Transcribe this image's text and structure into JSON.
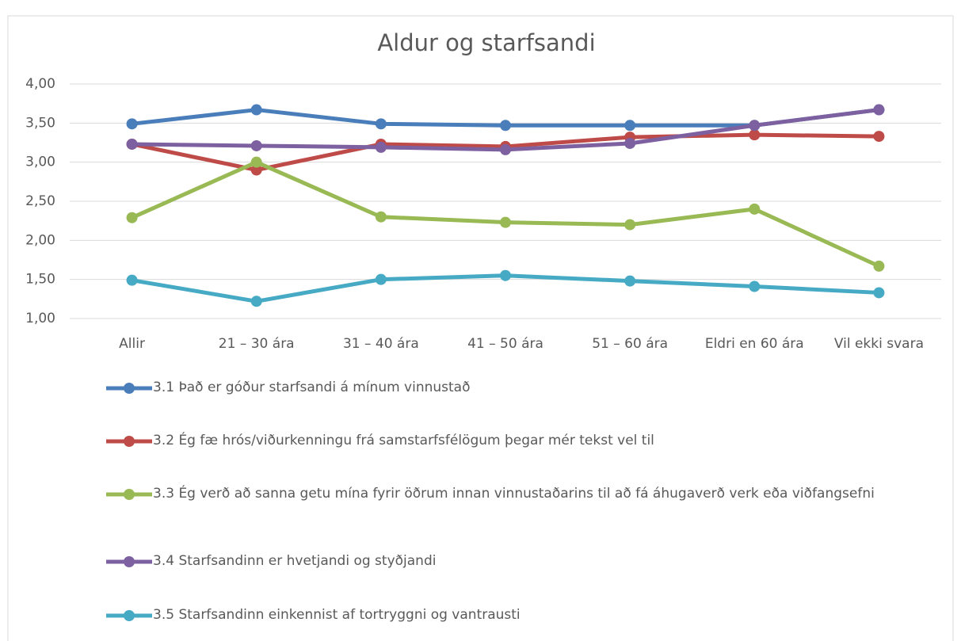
{
  "chart_data": {
    "type": "line",
    "title": "Aldur og starfsandi",
    "categories": [
      "Allir",
      "21 – 30 ára",
      "31 – 40 ára",
      "41 – 50 ára",
      "51 – 60 ára",
      "Eldri en 60 ára",
      "Vil ekki svara"
    ],
    "series": [
      {
        "name": "3.1 Það er góður starfsandi á mínum vinnustað",
        "color": "#4a7ebb",
        "values": [
          3.49,
          3.67,
          3.49,
          3.47,
          3.47,
          3.47,
          3.67
        ]
      },
      {
        "name": "3.2 Ég fæ hrós/viðurkenningu frá samstarfsfélögum þegar mér tekst vel til",
        "color": "#be4b48",
        "values": [
          3.23,
          2.9,
          3.23,
          3.2,
          3.32,
          3.35,
          3.33
        ]
      },
      {
        "name": "3.3 Ég verð að sanna getu mína fyrir öðrum innan vinnustaðarins til að fá áhugaverð verk eða viðfangsefni",
        "color": "#98b954",
        "values": [
          2.29,
          3.0,
          2.3,
          2.23,
          2.2,
          2.4,
          1.67
        ]
      },
      {
        "name": "3.4 Starfsandinn er hvetjandi og styðjandi",
        "color": "#7d60a0",
        "values": [
          3.23,
          3.21,
          3.19,
          3.16,
          3.24,
          3.47,
          3.67
        ]
      },
      {
        "name": "3.5 Starfsandinn einkennist af tortryggni og vantrausti",
        "color": "#46aac5",
        "values": [
          1.49,
          1.22,
          1.5,
          1.55,
          1.48,
          1.41,
          1.33
        ]
      }
    ],
    "ylim": [
      1,
      4
    ],
    "yticks": [
      {
        "value": 1,
        "label": "1,00"
      },
      {
        "value": 1.5,
        "label": "1,50"
      },
      {
        "value": 2,
        "label": "2,00"
      },
      {
        "value": 2.5,
        "label": "2,50"
      },
      {
        "value": 3,
        "label": "3,00"
      },
      {
        "value": 3.5,
        "label": "3,50"
      },
      {
        "value": 4,
        "label": "4,00"
      }
    ],
    "grid": true
  }
}
